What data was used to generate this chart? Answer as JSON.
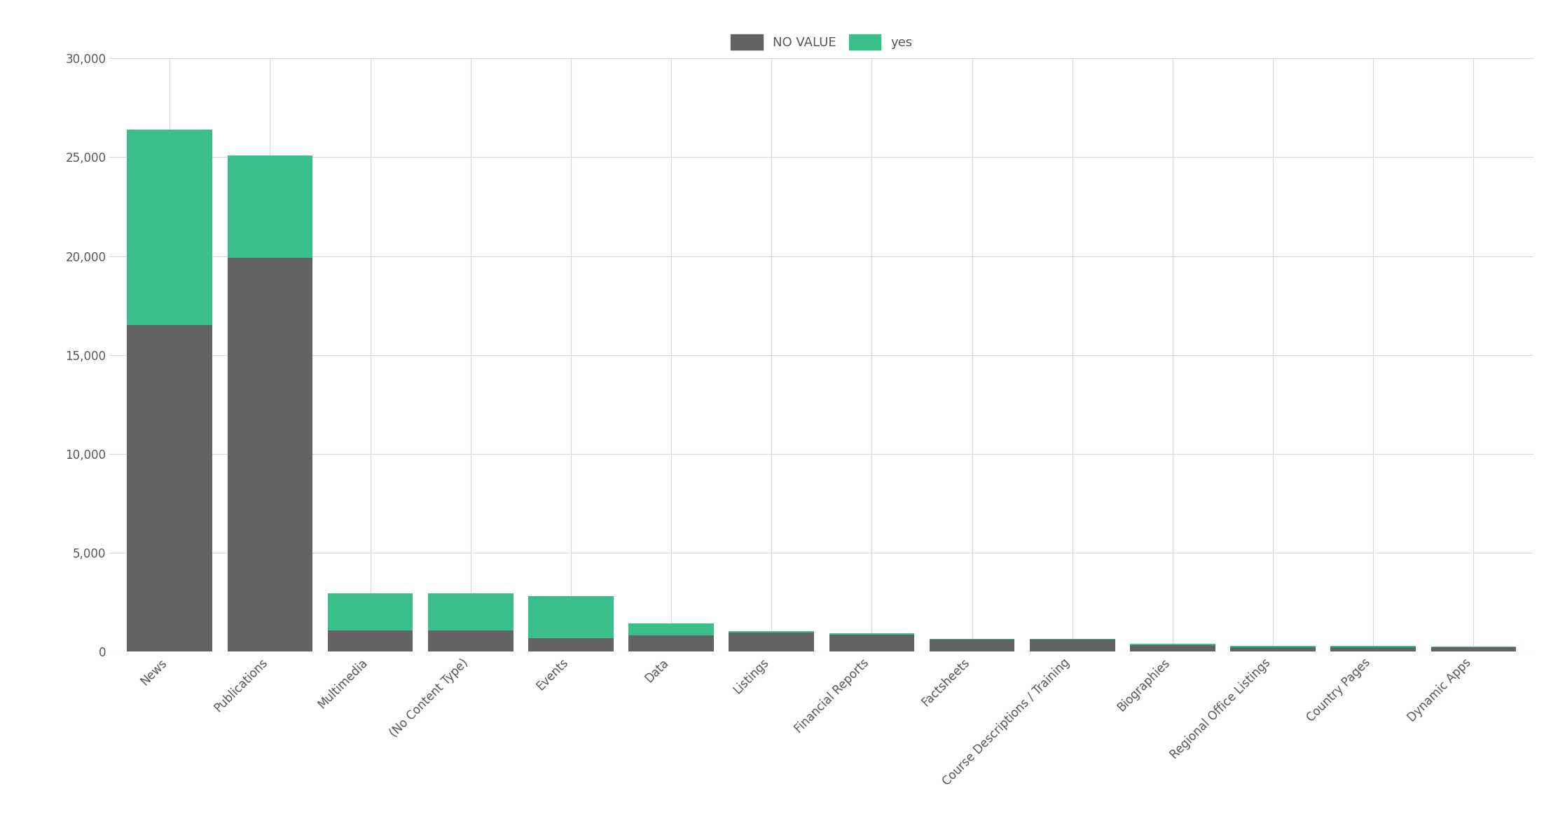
{
  "categories": [
    "News",
    "Publications",
    "Multimedia",
    "(No Content Type)",
    "Events",
    "Data",
    "Listings",
    "Financial Reports",
    "Factsheets",
    "Course Descriptions / Training",
    "Biographies",
    "Regional Office Listings",
    "Country Pages",
    "Dynamic Apps"
  ],
  "no_value": [
    16500,
    19900,
    1050,
    1050,
    650,
    800,
    950,
    850,
    580,
    590,
    320,
    220,
    220,
    190
  ],
  "yes": [
    9900,
    5200,
    1900,
    1900,
    2150,
    620,
    55,
    55,
    55,
    55,
    55,
    55,
    55,
    55
  ],
  "color_no_value": "#636363",
  "color_yes": "#3abf8a",
  "legend_labels": [
    "NO VALUE",
    "yes"
  ],
  "ylim": [
    0,
    30000
  ],
  "yticks": [
    0,
    5000,
    10000,
    15000,
    20000,
    25000,
    30000
  ],
  "background_color": "#ffffff",
  "grid_color": "#d9d9d9",
  "title": ""
}
